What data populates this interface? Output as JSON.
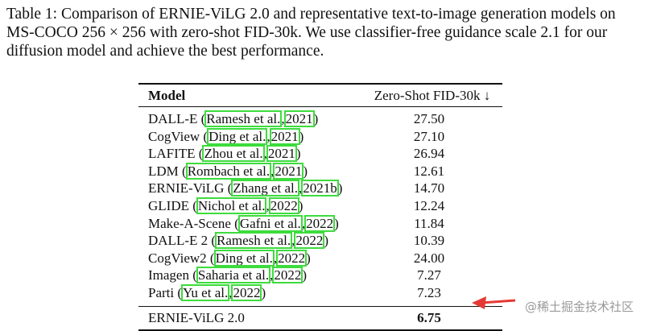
{
  "caption": [
    "Table 1: Comparison of ERNIE-ViLG 2.0 and representative text-to-image generation models on",
    "MS-COCO 256 × 256 with zero-shot FID-30k. We use classifier-free guidance scale 2.1 for our",
    "diffusion model and achieve the best performance."
  ],
  "table": {
    "header": [
      "Model",
      "Zero-Shot FID-30k ↓"
    ],
    "rows": [
      {
        "label": [
          "DALL-E (",
          "Ramesh et al.",
          ",",
          "2021",
          ")"
        ],
        "score": "27.50"
      },
      {
        "label": [
          "CogView (",
          "Ding et al.",
          ",",
          "2021",
          ")"
        ],
        "score": "27.10"
      },
      {
        "label": [
          "LAFITE (",
          "Zhou et al.",
          ",",
          "2021",
          ")"
        ],
        "score": "26.94"
      },
      {
        "label": [
          "LDM (",
          "Rombach et al.",
          ",",
          "2021",
          ")"
        ],
        "score": "12.61"
      },
      {
        "label": [
          "ERNIE-ViLG (",
          "Zhang et al.",
          ",",
          "2021b",
          ")"
        ],
        "score": "14.70"
      },
      {
        "label": [
          "GLIDE (",
          "Nichol et al.",
          ",",
          "2022",
          ")"
        ],
        "score": "12.24"
      },
      {
        "label": [
          "Make-A-Scene (",
          "Gafni et al.",
          ",",
          "2022",
          ")"
        ],
        "score": "11.84"
      },
      {
        "label": [
          "DALL-E 2 (",
          "Ramesh et al.",
          ",",
          "2022",
          ")"
        ],
        "score": "10.39"
      },
      {
        "label": [
          "CogView2 (",
          "Ding et al.",
          ",",
          "2022",
          ")"
        ],
        "score": "24.00"
      },
      {
        "label": [
          "Imagen (",
          "Saharia et al.",
          ",",
          "2022",
          ")"
        ],
        "score": "7.27"
      },
      {
        "label": [
          "Parti (",
          "Yu et al.",
          ",",
          "2022",
          ")"
        ],
        "score": "7.23"
      }
    ],
    "final": {
      "label": "ERNIE-ViLG 2.0",
      "score": "6.75"
    }
  },
  "watermark": "@稀土掘金技术社区"
}
